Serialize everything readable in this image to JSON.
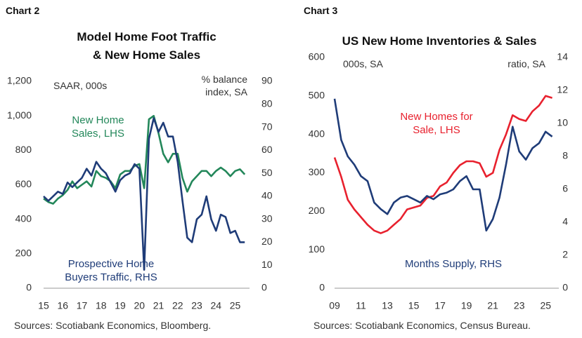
{
  "chart_data": [
    {
      "type": "line",
      "heading": "Chart 2",
      "title": "Model Home Foot Traffic & New Home Sales",
      "ylabel": "SAAR, 000s",
      "y2label": "% balance index, SA",
      "source": "Sources: Scotiabank Economics, Bloomberg.",
      "x": [
        15,
        15.25,
        15.5,
        15.75,
        16,
        16.25,
        16.5,
        16.75,
        17,
        17.25,
        17.5,
        17.75,
        18,
        18.25,
        18.5,
        18.75,
        19,
        19.25,
        19.5,
        19.75,
        20,
        20.25,
        20.5,
        20.75,
        21,
        21.25,
        21.5,
        21.75,
        22,
        22.25,
        22.5,
        22.75,
        23,
        23.25,
        23.5,
        23.75,
        24,
        24.25,
        24.5,
        24.75,
        25,
        25.25,
        25.5
      ],
      "xlim": [
        15,
        25.75
      ],
      "xticks": [
        15,
        16,
        17,
        18,
        19,
        20,
        21,
        22,
        23,
        24,
        25
      ],
      "ylim": [
        0,
        1200
      ],
      "yticks": [
        0,
        200,
        400,
        600,
        800,
        {
          "value": 1000,
          "label": "1,000"
        },
        {
          "value": 1200,
          "label": "1,200"
        }
      ],
      "y2lim": [
        0,
        90
      ],
      "y2ticks": [
        0,
        10,
        20,
        30,
        40,
        50,
        60,
        70,
        80,
        90
      ],
      "series": [
        {
          "name": "New Home Sales, LHS",
          "color": "#23875a",
          "axis": "y",
          "values": [
            520,
            500,
            490,
            520,
            540,
            570,
            620,
            580,
            600,
            620,
            590,
            680,
            650,
            640,
            620,
            580,
            660,
            680,
            680,
            710,
            720,
            580,
            980,
            1000,
            900,
            780,
            730,
            780,
            780,
            640,
            560,
            620,
            650,
            680,
            680,
            650,
            680,
            700,
            680,
            650,
            680,
            690,
            660
          ]
        },
        {
          "name": "Prospective Home Buyers Traffic, RHS",
          "color": "#1f3c78",
          "axis": "y2",
          "values": [
            40,
            38,
            40,
            42,
            41,
            46,
            44,
            46,
            48,
            52,
            49,
            55,
            52,
            50,
            46,
            42,
            47,
            49,
            50,
            54,
            52,
            8,
            65,
            74,
            68,
            72,
            66,
            66,
            55,
            38,
            22,
            20,
            30,
            32,
            40,
            30,
            25,
            32,
            31,
            24,
            25,
            20,
            20
          ]
        }
      ]
    },
    {
      "type": "line",
      "heading": "Chart 3",
      "title": "US New Home Inventories & Sales",
      "ylabel": "000s, SA",
      "y2label": "ratio, SA",
      "source": "Sources: Scotiabank Economics, Census Bureau.",
      "x": [
        9,
        9.5,
        10,
        10.5,
        11,
        11.5,
        12,
        12.5,
        13,
        13.5,
        14,
        14.5,
        15,
        15.5,
        16,
        16.5,
        17,
        17.5,
        18,
        18.5,
        19,
        19.5,
        20,
        20.5,
        21,
        21.5,
        22,
        22.5,
        23,
        23.5,
        24,
        24.5,
        25,
        25.5
      ],
      "xlim": [
        9,
        26
      ],
      "xticks": [
        {
          "value": 9,
          "label": "09"
        },
        11,
        13,
        15,
        17,
        19,
        21,
        23,
        25
      ],
      "ylim": [
        0,
        600
      ],
      "yticks": [
        0,
        100,
        200,
        300,
        400,
        500,
        600
      ],
      "y2lim": [
        0,
        14
      ],
      "y2ticks": [
        0,
        2,
        4,
        6,
        8,
        10,
        12,
        14
      ],
      "series": [
        {
          "name": "New Homes for Sale, LHS",
          "color": "#e8212e",
          "axis": "y",
          "values": [
            340,
            290,
            230,
            205,
            185,
            165,
            150,
            143,
            150,
            165,
            180,
            205,
            210,
            215,
            235,
            240,
            265,
            275,
            300,
            320,
            330,
            330,
            325,
            290,
            300,
            360,
            400,
            450,
            440,
            435,
            460,
            475,
            500,
            495
          ]
        },
        {
          "name": "Months Supply, RHS",
          "color": "#1f3c78",
          "axis": "y2",
          "values": [
            11.5,
            9.0,
            8.0,
            7.5,
            6.8,
            6.5,
            5.2,
            4.8,
            4.5,
            5.2,
            5.5,
            5.6,
            5.4,
            5.2,
            5.6,
            5.4,
            5.7,
            5.8,
            6.0,
            6.5,
            6.8,
            6.0,
            6.0,
            3.5,
            4.2,
            5.5,
            7.5,
            9.8,
            8.3,
            7.8,
            8.5,
            8.8,
            9.5,
            9.2
          ]
        }
      ]
    }
  ]
}
